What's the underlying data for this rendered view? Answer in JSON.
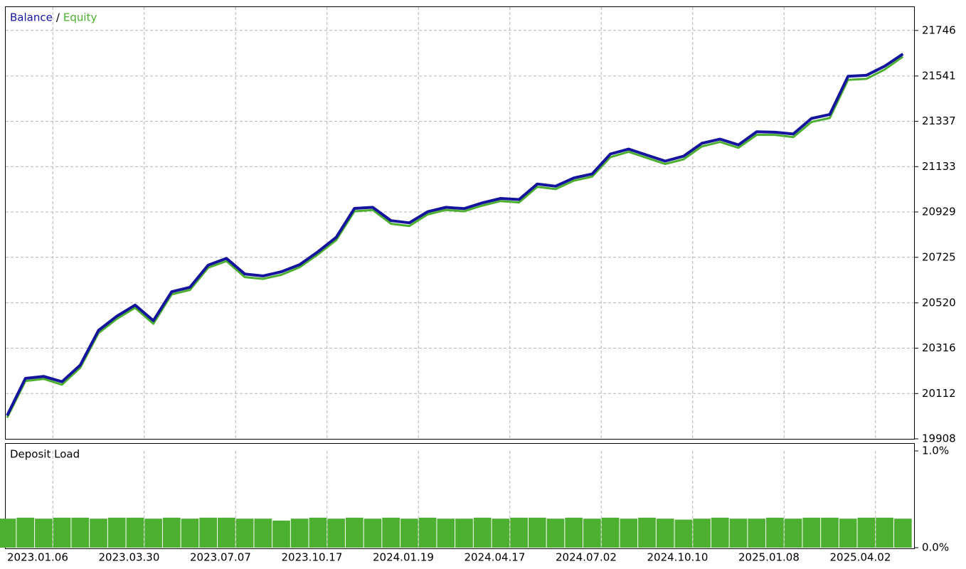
{
  "chart_data": [
    {
      "type": "line",
      "legend_separator": "/",
      "categories": [
        "2023.01.06",
        null,
        null,
        null,
        null,
        "2023.03.30",
        null,
        null,
        null,
        null,
        "2023.07.07",
        null,
        null,
        null,
        null,
        "2023.10.17",
        null,
        null,
        null,
        null,
        "2024.01.19",
        null,
        null,
        null,
        null,
        "2024.04.17",
        null,
        null,
        null,
        null,
        "2024.07.02",
        null,
        null,
        null,
        null,
        "2024.10.10",
        null,
        null,
        null,
        null,
        "2025.01.08",
        null,
        null,
        null,
        null,
        "2025.04.02",
        null,
        null,
        null,
        null
      ],
      "series": [
        {
          "name": "Equity",
          "color": "#4caf2f",
          "values": [
            20003,
            20168,
            20178,
            20152,
            20228,
            20384,
            20448,
            20498,
            20426,
            20558,
            20578,
            20678,
            20708,
            20636,
            20628,
            20646,
            20680,
            20738,
            20802,
            20932,
            20938,
            20876,
            20866,
            20918,
            20938,
            20932,
            20958,
            20978,
            20972,
            21042,
            21032,
            21070,
            21088,
            21176,
            21200,
            21172,
            21145,
            21166,
            21224,
            21244,
            21218,
            21276,
            21276,
            21266,
            21334,
            21352,
            21524,
            21528,
            21570,
            21628
          ]
        },
        {
          "name": "Balance",
          "color": "#14149c",
          "values": [
            20013,
            20180,
            20189,
            20165,
            20240,
            20396,
            20460,
            20510,
            20440,
            20570,
            20590,
            20690,
            20720,
            20650,
            20641,
            20660,
            20692,
            20750,
            20815,
            20945,
            20950,
            20890,
            20880,
            20930,
            20950,
            20944,
            20970,
            20990,
            20985,
            21055,
            21045,
            21082,
            21100,
            21190,
            21212,
            21185,
            21158,
            21180,
            21238,
            21257,
            21231,
            21290,
            21288,
            21280,
            21350,
            21368,
            21540,
            21544,
            21585,
            21640
          ]
        }
      ],
      "ylim": [
        19908,
        21851
      ],
      "yticks": [
        19908,
        20112,
        20316,
        20520,
        20725,
        20929,
        21133,
        21337,
        21541,
        21746
      ],
      "grid": true
    },
    {
      "type": "bar",
      "title": "Deposit Load",
      "color": "#4caf2f",
      "values": [
        0.3,
        0.31,
        0.3,
        0.31,
        0.31,
        0.3,
        0.31,
        0.31,
        0.3,
        0.31,
        0.3,
        0.31,
        0.31,
        0.3,
        0.3,
        0.28,
        0.3,
        0.31,
        0.3,
        0.31,
        0.3,
        0.31,
        0.3,
        0.31,
        0.3,
        0.3,
        0.31,
        0.3,
        0.31,
        0.31,
        0.3,
        0.31,
        0.3,
        0.31,
        0.3,
        0.31,
        0.3,
        0.29,
        0.3,
        0.31,
        0.3,
        0.3,
        0.31,
        0.3,
        0.31,
        0.31,
        0.3,
        0.31,
        0.31,
        0.3
      ],
      "ylim": [
        0,
        1
      ],
      "yticks": [
        {
          "value": 0,
          "label": "0.0%"
        },
        {
          "value": 1,
          "label": "1.0%"
        }
      ],
      "grid": true
    }
  ]
}
